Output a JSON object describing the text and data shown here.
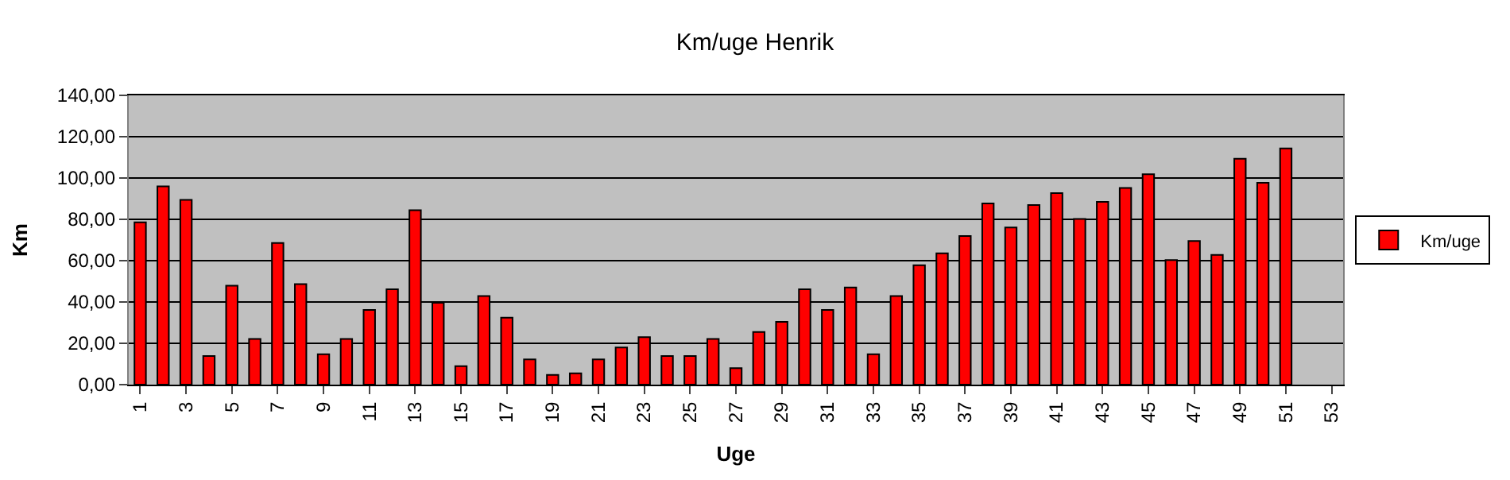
{
  "chart_data": {
    "type": "bar",
    "title": "Km/uge Henrik",
    "xlabel": "Uge",
    "ylabel": "Km",
    "x": [
      1,
      2,
      3,
      4,
      5,
      6,
      7,
      8,
      9,
      10,
      11,
      12,
      13,
      14,
      15,
      16,
      17,
      18,
      19,
      20,
      21,
      22,
      23,
      24,
      25,
      26,
      27,
      28,
      29,
      30,
      31,
      32,
      33,
      34,
      35,
      36,
      37,
      38,
      39,
      40,
      41,
      42,
      43,
      44,
      45,
      46,
      47,
      48,
      49,
      50,
      51
    ],
    "series": [
      {
        "name": "Km/uge",
        "color": "#ff0000",
        "values": [
          78.6,
          96,
          89.4,
          13.8,
          47.9,
          22.1,
          68.6,
          48.7,
          14.7,
          22.1,
          36.2,
          46.2,
          84.4,
          39.6,
          8.9,
          42.9,
          32.4,
          12.2,
          4.7,
          5.5,
          12.2,
          18,
          23,
          13.8,
          13.8,
          22.1,
          8,
          25.5,
          30.4,
          46.2,
          36.2,
          47,
          14.7,
          42.9,
          57.8,
          63.6,
          71.9,
          87.7,
          76.1,
          86.9,
          92.7,
          80.2,
          88.5,
          95.2,
          101.8,
          60.3,
          69.5,
          62.8,
          109.3,
          97.7,
          114.3
        ]
      }
    ],
    "xlim": [
      0.5,
      53.5
    ],
    "xticks": [
      1,
      3,
      5,
      7,
      9,
      11,
      13,
      15,
      17,
      19,
      21,
      23,
      25,
      27,
      29,
      31,
      33,
      35,
      37,
      39,
      41,
      43,
      45,
      47,
      49,
      51,
      53
    ],
    "ylim": [
      0,
      140
    ],
    "yticks": [
      {
        "value": 0,
        "label": "0,00"
      },
      {
        "value": 20,
        "label": "20,00"
      },
      {
        "value": 40,
        "label": "40,00"
      },
      {
        "value": 60,
        "label": "60,00"
      },
      {
        "value": 80,
        "label": "80,00"
      },
      {
        "value": 100,
        "label": "100,00"
      },
      {
        "value": 120,
        "label": "120,00"
      },
      {
        "value": 140,
        "label": "140,00"
      }
    ],
    "grid": "y",
    "legend": "right"
  }
}
